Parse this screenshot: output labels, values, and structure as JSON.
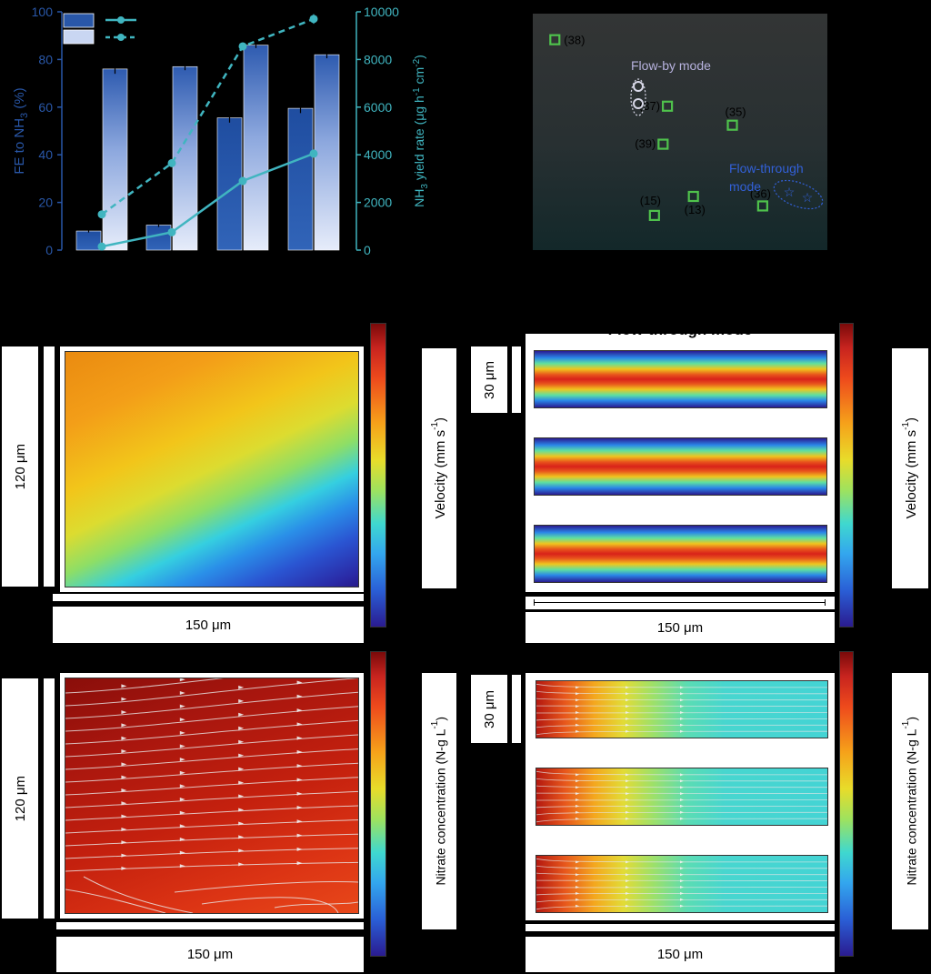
{
  "colors": {
    "fe_bar": "#2957a8",
    "yield_bar": "#c9d6f2",
    "yield_line": "#40b5c0"
  },
  "chart_data": [
    {
      "type": "bar",
      "categories": [
        "",
        "",
        "",
        ""
      ],
      "series": [
        {
          "values": [
            8,
            10.5,
            55.5,
            59.5
          ],
          "errors": [
            0.6,
            0.8,
            2,
            2
          ]
        },
        {
          "values": [
            7600,
            7700,
            8600,
            8200
          ],
          "errors": [
            200,
            150,
            120,
            150
          ]
        }
      ],
      "lines": [
        {
          "style": "solid",
          "values": [
            150,
            750,
            2900,
            4050
          ]
        },
        {
          "style": "dashed",
          "values": [
            1500,
            3650,
            8550,
            9700
          ],
          "errors": [
            0,
            0,
            0,
            200
          ]
        }
      ],
      "ylabel": "FE to NH3 (%)",
      "ylim": [
        0,
        100
      ],
      "yticks": [
        "0",
        "20",
        "40",
        "60",
        "80",
        "100"
      ],
      "y2label": "NH3 yield rate (μg h-1 cm-2)",
      "y2lim": [
        0,
        10000
      ],
      "y2ticks": [
        "0",
        "2000",
        "4000",
        "6000",
        "8000",
        "10000"
      ]
    },
    {
      "type": "scatter",
      "points": [
        {
          "label": "(38)",
          "x": 1,
          "y": 9.2
        },
        {
          "label": "(37)",
          "x": 3.6,
          "y": 6.4
        },
        {
          "label": "(35)",
          "x": 5.1,
          "y": 5.6
        },
        {
          "label": "(39)",
          "x": 3.5,
          "y": 4.8
        },
        {
          "label": "(15)",
          "x": 3.3,
          "y": 1.8
        },
        {
          "label": "(13)",
          "x": 4.2,
          "y": 2.6
        },
        {
          "label": "(36)",
          "x": 5.8,
          "y": 2.2
        }
      ],
      "annotations": [
        "Flow-by mode",
        "Flow-through mode"
      ]
    }
  ],
  "maps": {
    "dim_150": "150 μm",
    "dim_120": "120 μm",
    "dim_30": "30 μm",
    "velocity_label": "Velocity (mm s-1)",
    "nitrate_label": "Nitrate concentration (N-g L-1)",
    "flow_through_title": "Flow-through mode"
  }
}
